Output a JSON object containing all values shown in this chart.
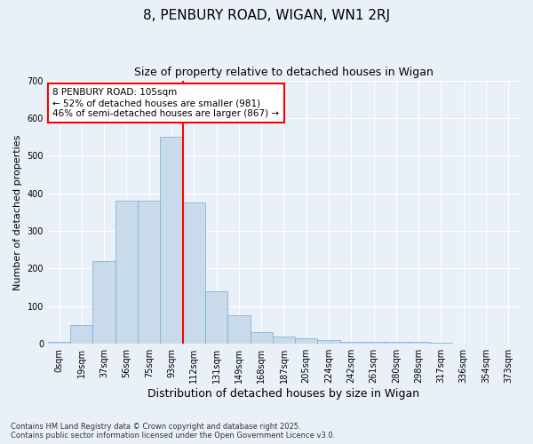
{
  "title1": "8, PENBURY ROAD, WIGAN, WN1 2RJ",
  "title2": "Size of property relative to detached houses in Wigan",
  "xlabel": "Distribution of detached houses by size in Wigan",
  "ylabel": "Number of detached properties",
  "bin_labels": [
    "0sqm",
    "19sqm",
    "37sqm",
    "56sqm",
    "75sqm",
    "93sqm",
    "112sqm",
    "131sqm",
    "149sqm",
    "168sqm",
    "187sqm",
    "205sqm",
    "224sqm",
    "242sqm",
    "261sqm",
    "280sqm",
    "298sqm",
    "317sqm",
    "336sqm",
    "354sqm",
    "373sqm"
  ],
  "bar_heights": [
    5,
    50,
    220,
    380,
    380,
    550,
    375,
    140,
    75,
    30,
    20,
    15,
    10,
    5,
    5,
    5,
    5,
    2,
    1,
    0,
    0
  ],
  "bar_color": "#c9daea",
  "bar_edgecolor": "#6aafd6",
  "red_line_x": 6.0,
  "annotation_text": "8 PENBURY ROAD: 105sqm\n← 52% of detached houses are smaller (981)\n46% of semi-detached houses are larger (867) →",
  "background_color": "#eaf0f8",
  "grid_color": "#ffffff",
  "footnote1": "Contains HM Land Registry data © Crown copyright and database right 2025.",
  "footnote2": "Contains public sector information licensed under the Open Government Licence v3.0.",
  "ylim": [
    0,
    700
  ],
  "yticks": [
    0,
    100,
    200,
    300,
    400,
    500,
    600,
    700
  ]
}
